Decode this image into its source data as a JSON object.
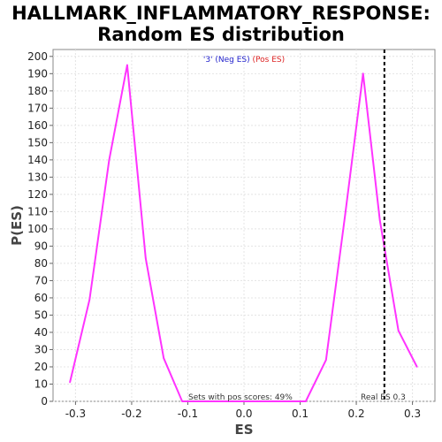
{
  "chart_data": {
    "type": "line",
    "title": "HALLMARK_INFLAMMATORY_RESPONSE:",
    "subtitle": "Random ES distribution",
    "xlabel": "ES",
    "ylabel": "P(ES)",
    "xlim": [
      -0.34,
      0.34
    ],
    "ylim": [
      0,
      204
    ],
    "xticks": [
      "-0.3",
      "-0.2",
      "-0.1",
      "0.0",
      "0.1",
      "0.2",
      "0.3"
    ],
    "xtick_values": [
      -0.3,
      -0.2,
      -0.1,
      0.0,
      0.1,
      0.2,
      0.3
    ],
    "yticks": [
      "0",
      "10",
      "20",
      "30",
      "40",
      "50",
      "60",
      "70",
      "80",
      "90",
      "100",
      "110",
      "120",
      "130",
      "140",
      "150",
      "160",
      "170",
      "180",
      "190",
      "200"
    ],
    "ytick_values": [
      0,
      10,
      20,
      30,
      40,
      50,
      60,
      70,
      80,
      90,
      100,
      110,
      120,
      130,
      140,
      150,
      160,
      170,
      180,
      190,
      200
    ],
    "grid": true,
    "series": [
      {
        "color": "#ff33ff",
        "x": [
          -0.31,
          -0.275,
          -0.24,
          -0.208,
          -0.175,
          -0.143,
          -0.11,
          0.11,
          0.146,
          0.18,
          0.212,
          0.242,
          0.275,
          0.308
        ],
        "y": [
          11,
          59,
          140,
          195,
          83,
          25,
          0,
          0,
          24,
          108,
          190,
          105,
          41,
          20
        ]
      }
    ],
    "reference_line": {
      "x": 0.25,
      "style": "dashed",
      "color": "#000000",
      "label": "Real ES 0.3"
    },
    "legend": {
      "placement": "top-center",
      "items": [
        {
          "text": "'3' (Neg ES)",
          "color": "#2222cc"
        },
        {
          "text": "(Pos ES)",
          "color": "#dd2222"
        }
      ]
    },
    "annotations": [
      {
        "text": "Sets with pos scores: 49%"
      }
    ]
  }
}
